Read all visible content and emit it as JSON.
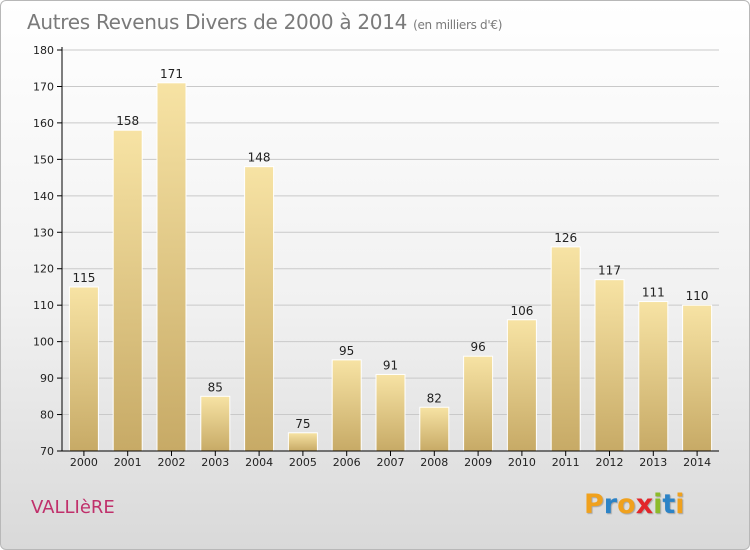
{
  "header": {
    "title": "Autres Revenus Divers de 2000 à 2014",
    "subtitle": "(en milliers d'€)"
  },
  "footer": {
    "commune": "VALLIèRE",
    "brand": {
      "letters": [
        "P",
        "r",
        "o",
        "x",
        "i",
        "t",
        "i"
      ],
      "colors": [
        "#f0a11d",
        "#2c83c6",
        "#f0a11d",
        "#e2262b",
        "#8dbb2b",
        "#2c83c6",
        "#f0a11d"
      ]
    }
  },
  "colors": {
    "bar_light": "#f7e3a4",
    "bar_dark": "#c7aa66",
    "axis": "#000000",
    "grid": "#c9c9c9",
    "title": "#7a7a7a",
    "commune": "#c0306b"
  },
  "chart_data": {
    "type": "bar",
    "title": "Autres Revenus Divers de 2000 à 2014",
    "subtitle": "(en milliers d'€)",
    "xlabel": "",
    "ylabel": "",
    "categories": [
      "2000",
      "2001",
      "2002",
      "2003",
      "2004",
      "2005",
      "2006",
      "2007",
      "2008",
      "2009",
      "2010",
      "2011",
      "2012",
      "2013",
      "2014"
    ],
    "values": [
      115,
      158,
      171,
      85,
      148,
      75,
      95,
      91,
      82,
      96,
      106,
      126,
      117,
      111,
      110
    ],
    "ylim": [
      70,
      180
    ],
    "yticks": [
      70,
      80,
      90,
      100,
      110,
      120,
      130,
      140,
      150,
      160,
      170,
      180
    ],
    "grid": true,
    "data_labels": true,
    "legend": "none"
  }
}
